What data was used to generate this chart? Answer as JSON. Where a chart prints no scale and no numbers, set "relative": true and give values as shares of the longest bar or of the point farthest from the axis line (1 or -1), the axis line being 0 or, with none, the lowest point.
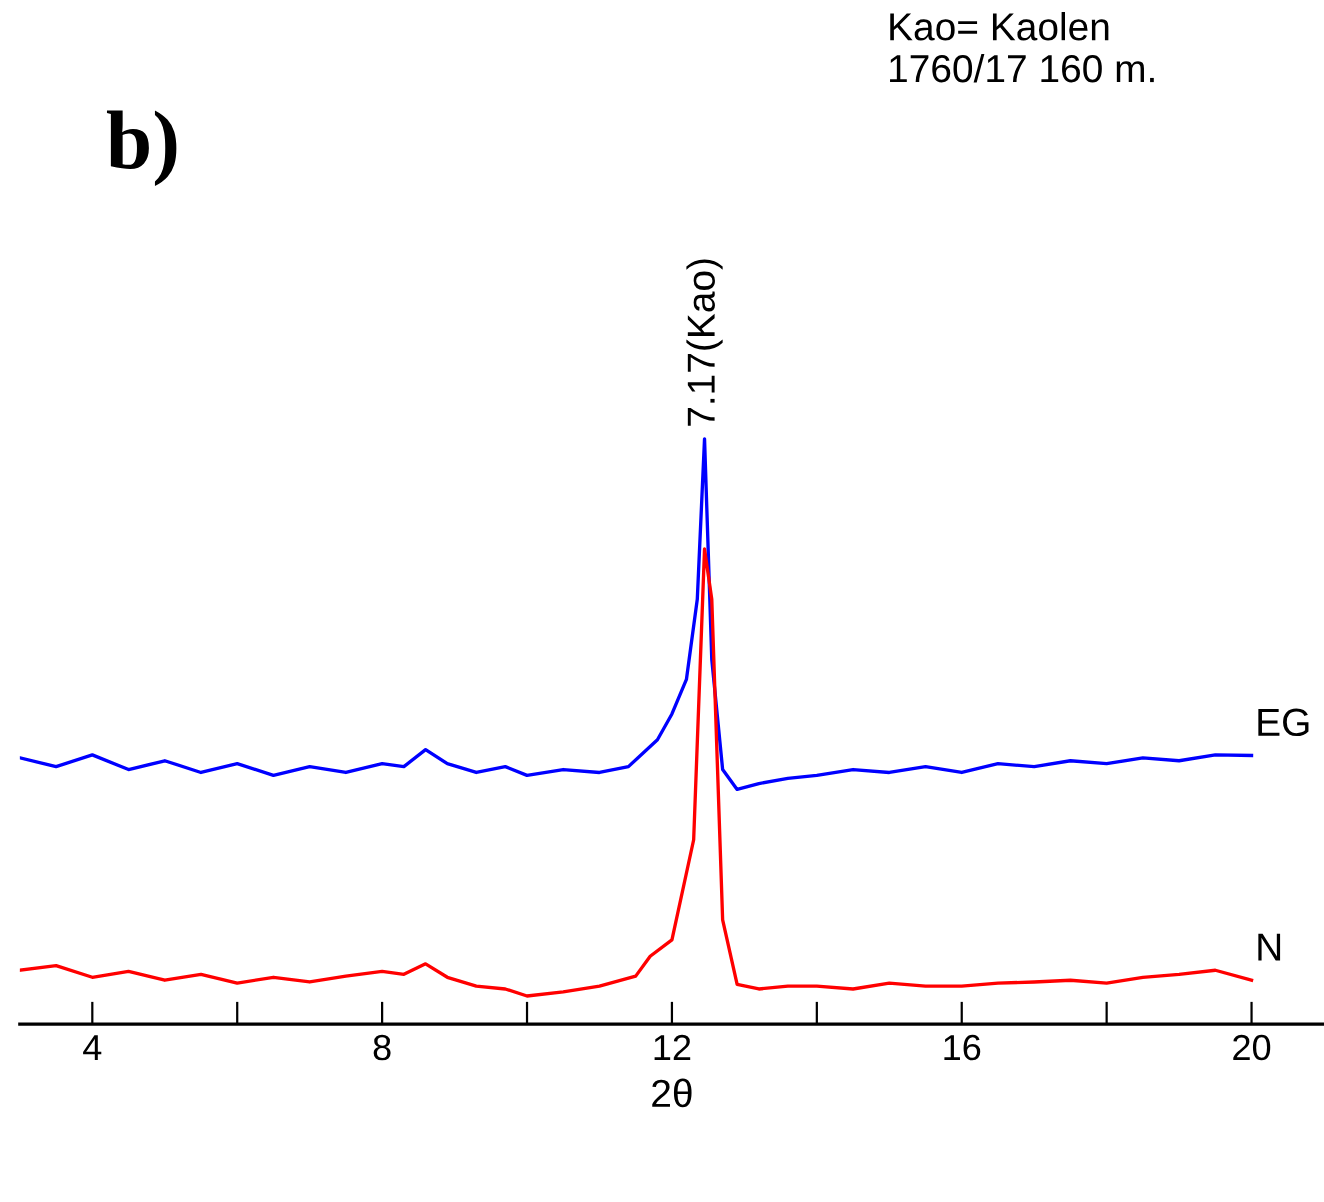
{
  "chart_data": {
    "type": "line",
    "relative": true,
    "xlabel": "2θ",
    "annotations": [
      "b)",
      "Kao= Kaolen\n1760/17 160 m.",
      {
        "text": "7.17(Kao)",
        "x": 12.45,
        "y": 1
      }
    ],
    "xlim": [
      3,
      21
    ],
    "xticks": [
      4,
      {
        "value": 6,
        "label": null
      },
      8,
      {
        "value": 10,
        "label": null
      },
      12,
      {
        "value": 14,
        "label": null
      },
      16,
      {
        "value": 18,
        "label": null
      },
      20
    ],
    "grid": false,
    "legend": false,
    "marker": "none",
    "line_style": "solid",
    "series": [
      {
        "name": "EG",
        "color": "#0000ff",
        "x": [
          3,
          3.5,
          4,
          4.5,
          5,
          5.5,
          6,
          6.5,
          7,
          7.5,
          8,
          8.3,
          8.6,
          8.9,
          9.3,
          9.7,
          10,
          10.5,
          11,
          11.4,
          11.8,
          12.0,
          12.2,
          12.35,
          12.45,
          12.55,
          12.7,
          12.9,
          13.2,
          13.6,
          14,
          14.5,
          15,
          15.5,
          16,
          16.5,
          17,
          17.5,
          18,
          18.5,
          19,
          19.5,
          20
        ],
        "values": [
          0.455,
          0.44,
          0.46,
          0.435,
          0.45,
          0.43,
          0.445,
          0.425,
          0.44,
          0.43,
          0.445,
          0.44,
          0.469,
          0.445,
          0.43,
          0.44,
          0.425,
          0.435,
          0.43,
          0.44,
          0.486,
          0.53,
          0.589,
          0.726,
          1,
          0.623,
          0.435,
          0.401,
          0.411,
          0.42,
          0.425,
          0.435,
          0.43,
          0.44,
          0.43,
          0.445,
          0.44,
          0.45,
          0.445,
          0.455,
          0.45,
          0.46,
          0.459
        ]
      },
      {
        "name": "N",
        "color": "#ff0000",
        "x": [
          3,
          3.5,
          4,
          4.5,
          5,
          5.5,
          6,
          6.5,
          7,
          7.5,
          8,
          8.3,
          8.6,
          8.9,
          9.3,
          9.7,
          10,
          10.5,
          11,
          11.5,
          11.7,
          12.0,
          12.3,
          12.45,
          12.55,
          12.7,
          12.9,
          13.2,
          13.6,
          14,
          14.5,
          15,
          15.5,
          16,
          16.5,
          17,
          17.5,
          18,
          18.5,
          19,
          19.5,
          20
        ],
        "values": [
          0.092,
          0.1,
          0.08,
          0.09,
          0.075,
          0.085,
          0.07,
          0.08,
          0.072,
          0.082,
          0.09,
          0.085,
          0.103,
          0.08,
          0.065,
          0.06,
          0.048,
          0.055,
          0.065,
          0.082,
          0.116,
          0.144,
          0.315,
          0.812,
          0.726,
          0.178,
          0.068,
          0.06,
          0.065,
          0.065,
          0.06,
          0.07,
          0.065,
          0.065,
          0.07,
          0.072,
          0.075,
          0.07,
          0.08,
          0.085,
          0.092,
          0.075
        ]
      }
    ]
  }
}
